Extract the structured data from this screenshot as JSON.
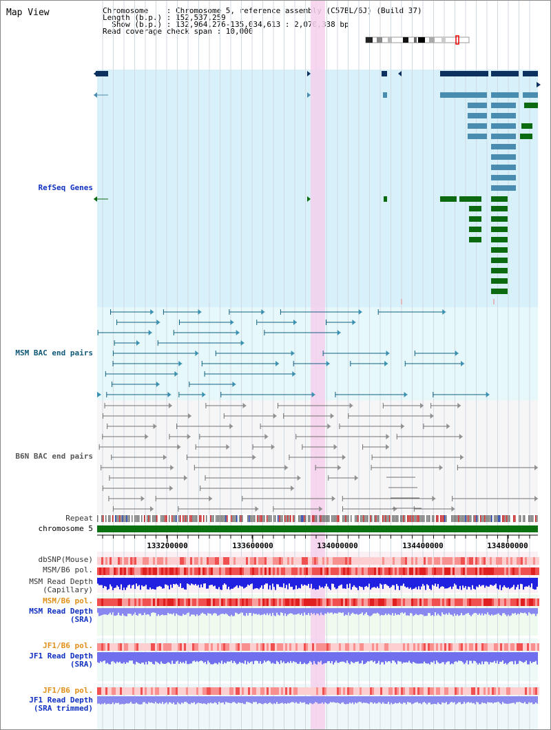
{
  "title": "Map View",
  "info": {
    "chromosome": "Chromosome    : Chromosome 5, reference assembly (C57BL/6J) (Build 37)",
    "length": "Length (b.p.) : 152,537,259",
    "show": "  Show (b.p.) : 132,964,276-135,034,613 : 2,070,338 bp",
    "span": "Read coverage check span : 10,000"
  },
  "tracks": {
    "refseq": "RefSeq Genes",
    "msm_bac": "MSM BAC end pairs",
    "b6n_bac": "B6N BAC end pairs",
    "repeat": "Repeat",
    "chromosome": "chromosome 5",
    "dbsnp": "dbSNP(Mouse)",
    "msm_pol": "MSM/B6 pol.",
    "msm_depth_cap_1": "MSM Read Depth",
    "msm_depth_cap_2": "(Capillary)",
    "msm_pol_sra": "MSM/B6 pol.",
    "msm_depth_sra_1": "MSM Read Depth",
    "msm_depth_sra_2": "(SRA)",
    "jf1_pol": "JF1/B6 pol.",
    "jf1_depth_1": "JF1 Read Depth",
    "jf1_depth_2": "(SRA)",
    "jf1_pol_trim": "JF1/B6 pol.",
    "jf1_depth_trim_1": "JF1 Read Depth",
    "jf1_depth_trim_2": "(SRA trimmed)"
  },
  "axis": {
    "ticks": [
      "133200000",
      "133600000",
      "134000000",
      "134400000",
      "134800000"
    ]
  },
  "colors": {
    "refseq_bg": "#d8f0fa",
    "msm_bg": "#e6f8fa",
    "b6n_bg": "#f6f6f6",
    "highlight": "#f5d0ec",
    "gene_dark": "#0c3060",
    "gene_mid": "#4a8cb0",
    "gene_green": "#0b6a10",
    "chromosome_bar": "#0b7010"
  }
}
